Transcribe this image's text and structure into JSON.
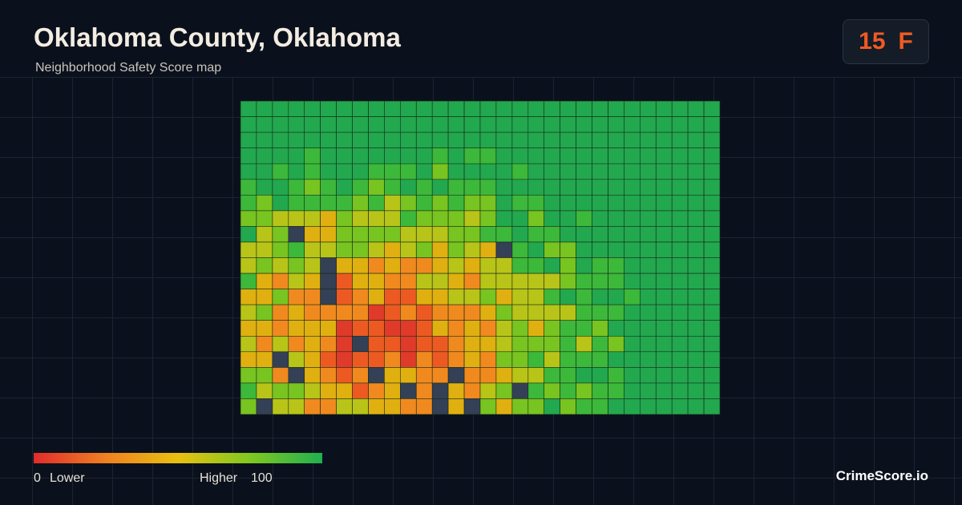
{
  "header": {
    "title": "Oklahoma County, Oklahoma",
    "subtitle": "Neighborhood Safety Score map"
  },
  "score": {
    "value": "15",
    "grade": "F"
  },
  "legend": {
    "min": "0",
    "min_label": "Lower",
    "max_label": "Higher",
    "max": "100"
  },
  "brand": "CrimeScore.io"
}
